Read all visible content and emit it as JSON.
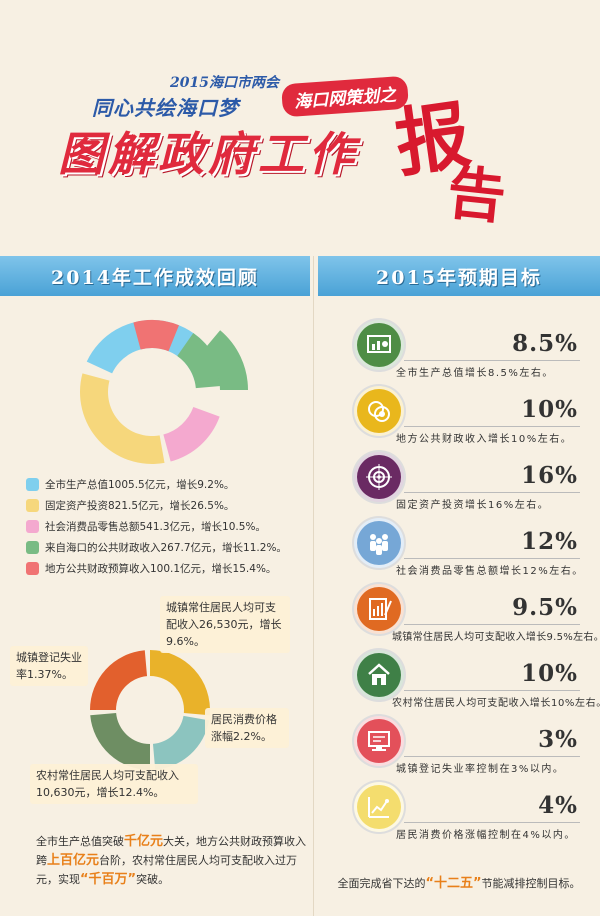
{
  "header": {
    "subtitle_year": "2015海口市两会",
    "subtitle_slogan": "同心共绘海口梦",
    "badge": "海口网策划之",
    "title_main": "图解政府工作",
    "title_big_1": "报",
    "title_big_2": "告"
  },
  "left": {
    "heading": "2014年工作成效回顾",
    "donut1": [
      {
        "label": "全市生产总值1005.5亿元，增长9.2%。",
        "color": "#7fcfee",
        "value": 9.2
      },
      {
        "label": "固定资产投资821.5亿元，增长26.5%。",
        "color": "#f6d77c",
        "value": 26.5
      },
      {
        "label": "社会消费品零售总额541.3亿元，增长10.5%。",
        "color": "#f4a9cf",
        "value": 10.5
      },
      {
        "label": "来自海口的公共财政收入267.7亿元，增长11.2%。",
        "color": "#79bb84",
        "value": 11.2
      },
      {
        "label": "地方公共财政预算收入100.1亿元，增长15.4%。",
        "color": "#f07373",
        "value": 15.4
      }
    ],
    "donut2": {
      "callouts": {
        "income_urban": "城镇常住居民人均可支配收入26,530元，增长9.6%。",
        "unemployment": "城镇登记失业率1.37%。",
        "cpi": "居民消费价格涨幅2.2%。",
        "income_rural": "农村常住居民人均可支配收入10,630元，增长12.4%。"
      },
      "colors": [
        "#e9b22a",
        "#8cc4bf",
        "#6e8e63",
        "#e2602d"
      ]
    },
    "summary": {
      "p1": "全市生产总值突破",
      "h1": "千亿元",
      "p2": "大关，地方公共财政预算收入跨",
      "h2": "上百亿元",
      "p3": "台阶，农村常住居民人均可支配收入过万元，实现",
      "h3": "“千百万”",
      "p4": "突破。"
    }
  },
  "right": {
    "heading": "2015年预期目标",
    "goals": [
      {
        "value": "8.5%",
        "desc": "全市生产总值增长8.5%左右。",
        "icon": "chart-board-icon",
        "color": "#4e8d45"
      },
      {
        "value": "10%",
        "desc": "地方公共财政收入增长10%左右。",
        "icon": "coins-icon",
        "color": "#e9b71c"
      },
      {
        "value": "16%",
        "desc": "固定资产投资增长16%左右。",
        "icon": "target-icon",
        "color": "#6a2a63"
      },
      {
        "value": "12%",
        "desc": "社会消费品零售总额增长12%左右。",
        "icon": "people-icon",
        "color": "#76a7d6"
      },
      {
        "value": "9.5%",
        "desc": "城镇常住居民人均可支配收入增长9.5%左右。",
        "icon": "document-chart-icon",
        "color": "#e06a22"
      },
      {
        "value": "10%",
        "desc": "农村常住居民人均可支配收入增长10%左右。",
        "icon": "house-icon",
        "color": "#3f8047"
      },
      {
        "value": "3%",
        "desc": "城镇登记失业率控制在3%以内。",
        "icon": "computer-icon",
        "color": "#e3505a"
      },
      {
        "value": "4%",
        "desc": "居民消费价格涨幅控制在4%以内。",
        "icon": "chart-light-icon",
        "color": "#f4dd6e"
      }
    ],
    "footer": {
      "before": "全面完成省下达的",
      "highlight": "“十二五”",
      "after": "节能减排控制目标。"
    }
  }
}
